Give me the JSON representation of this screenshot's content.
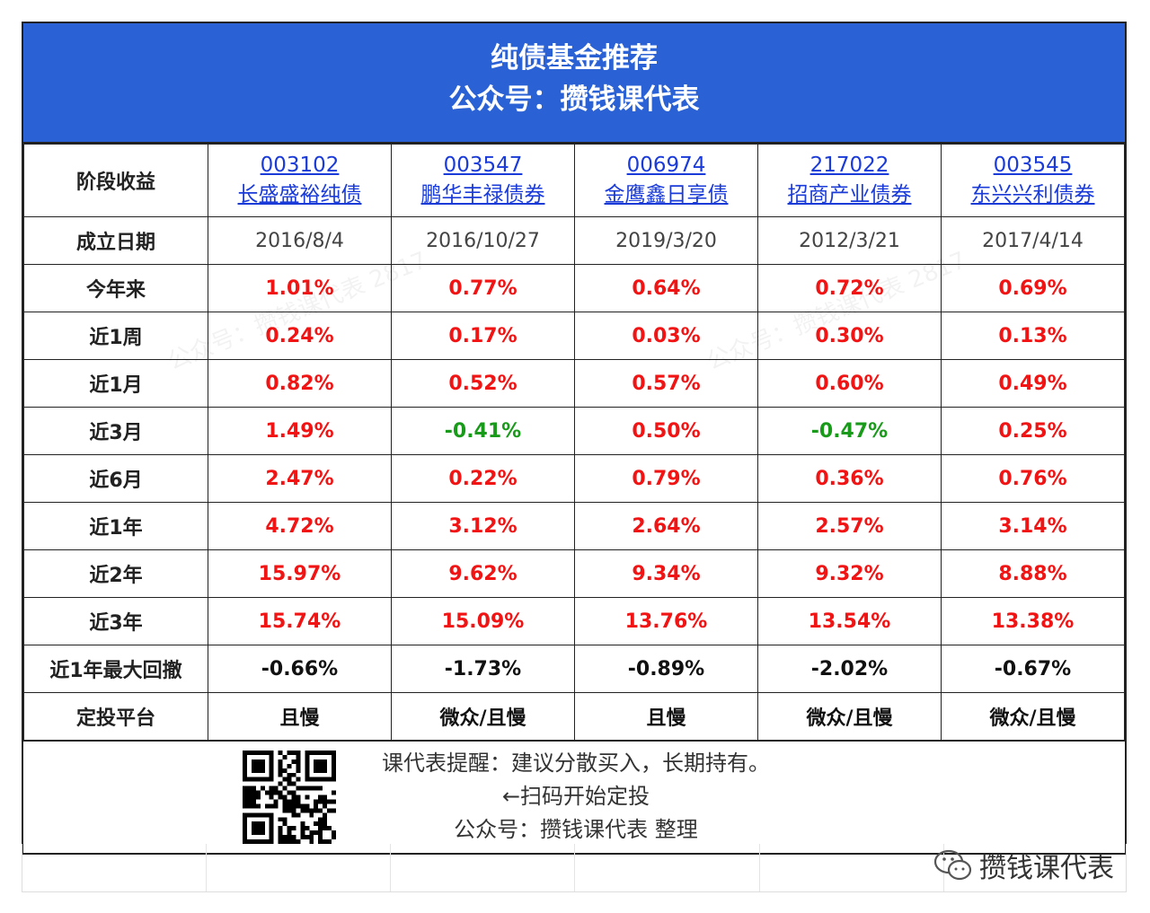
{
  "header": {
    "title": "纯债基金推荐",
    "subtitle": "公众号：攒钱课代表"
  },
  "table": {
    "first_header": "阶段收益",
    "funds": [
      {
        "code": "003102",
        "name": "长盛盛裕纯债"
      },
      {
        "code": "003547",
        "name": "鹏华丰禄债券"
      },
      {
        "code": "006974",
        "name": "金鹰鑫日享债"
      },
      {
        "code": "217022",
        "name": "招商产业债券"
      },
      {
        "code": "003545",
        "name": "东兴兴利债券"
      }
    ],
    "rows": [
      {
        "label": "成立日期",
        "style": "date",
        "values": [
          "2016/8/4",
          "2016/10/27",
          "2019/3/20",
          "2012/3/21",
          "2017/4/14"
        ]
      },
      {
        "label": "今年来",
        "style": "ret",
        "values": [
          "1.01%",
          "0.77%",
          "0.64%",
          "0.72%",
          "0.69%"
        ]
      },
      {
        "label": "近1周",
        "style": "ret",
        "values": [
          "0.24%",
          "0.17%",
          "0.03%",
          "0.30%",
          "0.13%"
        ]
      },
      {
        "label": "近1月",
        "style": "ret",
        "values": [
          "0.82%",
          "0.52%",
          "0.57%",
          "0.60%",
          "0.49%"
        ]
      },
      {
        "label": "近3月",
        "style": "ret",
        "values": [
          "1.49%",
          "-0.41%",
          "0.50%",
          "-0.47%",
          "0.25%"
        ]
      },
      {
        "label": "近6月",
        "style": "ret",
        "values": [
          "2.47%",
          "0.22%",
          "0.79%",
          "0.36%",
          "0.76%"
        ]
      },
      {
        "label": "近1年",
        "style": "ret",
        "values": [
          "4.72%",
          "3.12%",
          "2.64%",
          "2.57%",
          "3.14%"
        ]
      },
      {
        "label": "近2年",
        "style": "ret",
        "values": [
          "15.97%",
          "9.62%",
          "9.34%",
          "9.32%",
          "8.88%"
        ]
      },
      {
        "label": "近3年",
        "style": "ret",
        "values": [
          "15.74%",
          "15.09%",
          "13.76%",
          "13.54%",
          "13.38%"
        ]
      },
      {
        "label": "近1年最大回撤",
        "style": "black",
        "values": [
          "-0.66%",
          "-1.73%",
          "-0.89%",
          "-2.02%",
          "-0.67%"
        ]
      },
      {
        "label": "定投平台",
        "style": "black",
        "values": [
          "且慢",
          "微众/且慢",
          "且慢",
          "微众/且慢",
          "微众/且慢"
        ]
      }
    ]
  },
  "footer": {
    "line1": "课代表提醒：建议分散买入，长期持有。",
    "line2": "←扫码开始定投",
    "line3": "公众号：攒钱课代表 整理"
  },
  "brand": "攒钱课代表",
  "colors": {
    "header_bg": "#2a62d6",
    "positive": "#f01414",
    "negative": "#1a9a1a",
    "link": "#1a3bd8"
  }
}
